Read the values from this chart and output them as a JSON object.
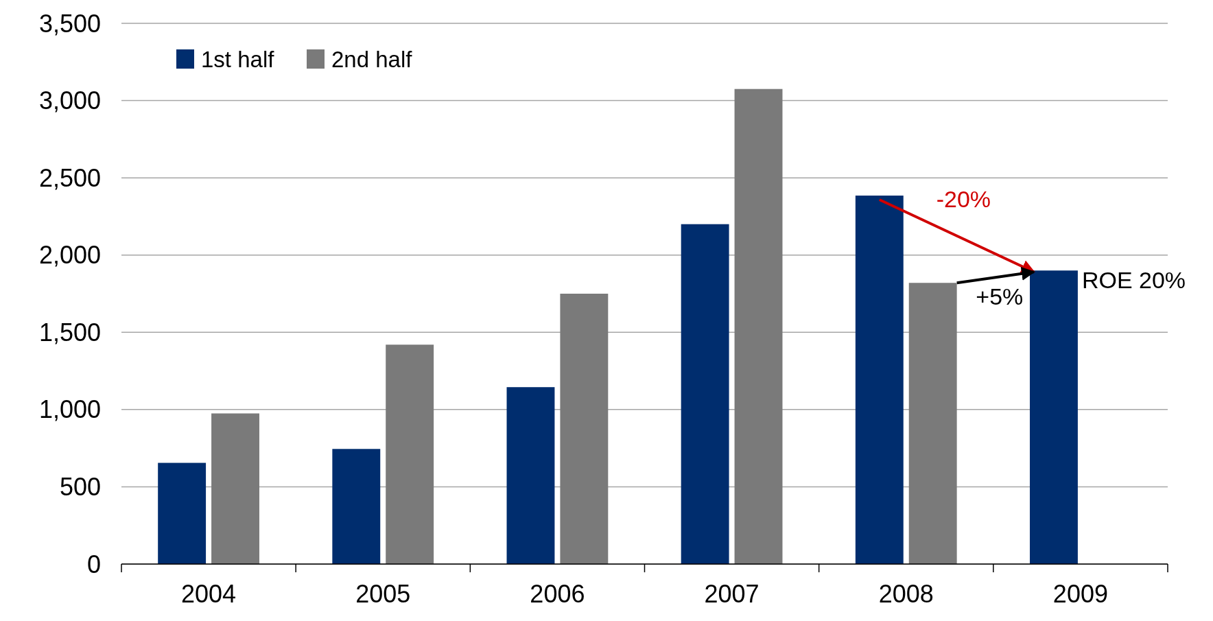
{
  "chart_data": {
    "type": "bar",
    "categories": [
      "2004",
      "2005",
      "2006",
      "2007",
      "2008",
      "2009"
    ],
    "series": [
      {
        "name": "1st half",
        "color": "#002d6e",
        "values": [
          655,
          745,
          1145,
          2200,
          2385,
          1900
        ]
      },
      {
        "name": "2nd half",
        "color": "#7a7a7a",
        "values": [
          975,
          1420,
          1750,
          3075,
          1820,
          null
        ]
      }
    ],
    "ylim": [
      0,
      3500
    ],
    "yticks": [
      {
        "value": 0,
        "label": "0"
      },
      {
        "value": 500,
        "label": "500"
      },
      {
        "value": 1000,
        "label": "1,000"
      },
      {
        "value": 1500,
        "label": "1,500"
      },
      {
        "value": 2000,
        "label": "2,000"
      },
      {
        "value": 2500,
        "label": "2,500"
      },
      {
        "value": 3000,
        "label": "3,000"
      },
      {
        "value": 3500,
        "label": "3,500"
      }
    ],
    "grid": "y",
    "legend": "top left",
    "annotations": [
      {
        "text": "-20%",
        "x": "2008",
        "y": 2385
      },
      {
        "text": "+5%",
        "x": "2008",
        "y": 1820
      },
      {
        "text": "ROE 20%",
        "x": "2009",
        "y": 1900
      }
    ]
  }
}
